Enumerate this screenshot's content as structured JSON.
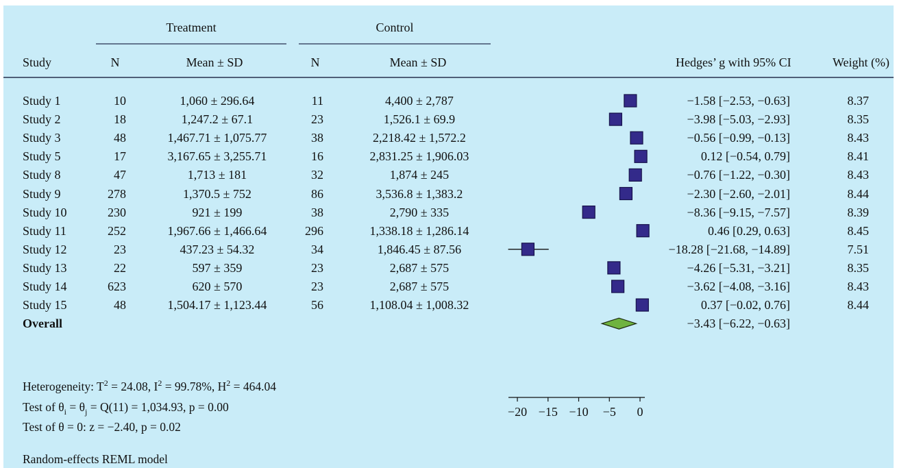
{
  "colors": {
    "background": "#c9ecf8",
    "marker_fill": "#332a8a",
    "marker_border": "#16124a",
    "overall_diamond": "#6fb33f",
    "rule_color": "#27304e"
  },
  "header": {
    "group_treatment": "Treatment",
    "group_control": "Control",
    "col_study": "Study",
    "col_n": "N",
    "col_mean_sd": "Mean ± SD",
    "col_effect": "Hedges’ g with 95% CI",
    "col_weight": "Weight (%)"
  },
  "chart_data": {
    "type": "forest",
    "xlim": [
      -20,
      1.5
    ],
    "xticks": [
      -20,
      -15,
      -10,
      -5,
      0
    ],
    "xtick_labels": [
      "−20",
      "−15",
      "−10",
      "−5",
      "0"
    ],
    "studies": [
      {
        "study": "Study 1",
        "t_n": "10",
        "t_mean_sd": "1,060 ± 296.64",
        "c_n": "11",
        "c_mean_sd": "4,400 ± 2,787",
        "g": -1.58,
        "lo": -2.53,
        "hi": -0.63,
        "ci_text": "−1.58 [−2.53, −0.63]",
        "weight": "8.37"
      },
      {
        "study": "Study 2",
        "t_n": "18",
        "t_mean_sd": "1,247.2 ± 67.1",
        "c_n": "23",
        "c_mean_sd": "1,526.1 ± 69.9",
        "g": -3.98,
        "lo": -5.03,
        "hi": -2.93,
        "ci_text": "−3.98 [−5.03, −2.93]",
        "weight": "8.35"
      },
      {
        "study": "Study 3",
        "t_n": "48",
        "t_mean_sd": "1,467.71 ± 1,075.77",
        "c_n": "38",
        "c_mean_sd": "2,218.42 ± 1,572.2",
        "g": -0.56,
        "lo": -0.99,
        "hi": -0.13,
        "ci_text": "−0.56 [−0.99, −0.13]",
        "weight": "8.43"
      },
      {
        "study": "Study 5",
        "t_n": "17",
        "t_mean_sd": "3,167.65 ± 3,255.71",
        "c_n": "16",
        "c_mean_sd": "2,831.25 ± 1,906.03",
        "g": 0.12,
        "lo": -0.54,
        "hi": 0.79,
        "ci_text": "0.12 [−0.54, 0.79]",
        "weight": "8.41"
      },
      {
        "study": "Study 8",
        "t_n": "47",
        "t_mean_sd": "1,713 ± 181",
        "c_n": "32",
        "c_mean_sd": "1,874 ± 245",
        "g": -0.76,
        "lo": -1.22,
        "hi": -0.3,
        "ci_text": "−0.76 [−1.22, −0.30]",
        "weight": "8.43"
      },
      {
        "study": "Study 9",
        "t_n": "278",
        "t_mean_sd": "1,370.5 ± 752",
        "c_n": "86",
        "c_mean_sd": "3,536.8 ± 1,383.2",
        "g": -2.3,
        "lo": -2.6,
        "hi": -2.01,
        "ci_text": "−2.30 [−2.60, −2.01]",
        "weight": "8.44"
      },
      {
        "study": "Study 10",
        "t_n": "230",
        "t_mean_sd": "921 ± 199",
        "c_n": "38",
        "c_mean_sd": "2,790 ± 335",
        "g": -8.36,
        "lo": -9.15,
        "hi": -7.57,
        "ci_text": "−8.36 [−9.15, −7.57]",
        "weight": "8.39"
      },
      {
        "study": "Study 11",
        "t_n": "252",
        "t_mean_sd": "1,967.66 ± 1,466.64",
        "c_n": "296",
        "c_mean_sd": "1,338.18 ± 1,286.14",
        "g": 0.46,
        "lo": 0.29,
        "hi": 0.63,
        "ci_text": "0.46 [0.29, 0.63]",
        "weight": "8.45"
      },
      {
        "study": "Study 12",
        "t_n": "23",
        "t_mean_sd": "437.23 ± 54.32",
        "c_n": "34",
        "c_mean_sd": "1,846.45 ± 87.56",
        "g": -18.28,
        "lo": -21.68,
        "hi": -14.89,
        "ci_text": "−18.28 [−21.68, −14.89]",
        "weight": "7.51"
      },
      {
        "study": "Study 13",
        "t_n": "22",
        "t_mean_sd": "597 ± 359",
        "c_n": "23",
        "c_mean_sd": "2,687 ± 575",
        "g": -4.26,
        "lo": -5.31,
        "hi": -3.21,
        "ci_text": "−4.26 [−5.31, −3.21]",
        "weight": "8.35"
      },
      {
        "study": "Study 14",
        "t_n": "623",
        "t_mean_sd": "620 ± 570",
        "c_n": "23",
        "c_mean_sd": "2,687 ± 575",
        "g": -3.62,
        "lo": -4.08,
        "hi": -3.16,
        "ci_text": "−3.62 [−4.08, −3.16]",
        "weight": "8.43"
      },
      {
        "study": "Study 15",
        "t_n": "48",
        "t_mean_sd": "1,504.17 ± 1,123.44",
        "c_n": "56",
        "c_mean_sd": "1,108.04 ± 1,008.32",
        "g": 0.37,
        "lo": -0.02,
        "hi": 0.76,
        "ci_text": "0.37 [−0.02, 0.76]",
        "weight": "8.44"
      }
    ],
    "overall": {
      "label": "Overall",
      "g": -3.43,
      "lo": -6.22,
      "hi": -0.63,
      "ci_text": "−3.43 [−6.22, −0.63]"
    }
  },
  "footer": {
    "het_prefix": "Heterogeneity: T",
    "het_t2_sup": "2",
    "het_mid1": " = 24.08, I",
    "het_i2_sup": "2",
    "het_mid2": " = 99.78%, H",
    "het_h2_sup": "2",
    "het_end": " = 464.04",
    "homog_a": "Test of θ",
    "homog_sub_i": "i",
    "homog_b": " = θ",
    "homog_sub_j": "j",
    "homog_c": " = Q(11) = 1,034.93, p = 0.00",
    "ztest": "Test of θ = 0: z = −2.40, p = 0.02",
    "model": "Random-effects REML model"
  }
}
